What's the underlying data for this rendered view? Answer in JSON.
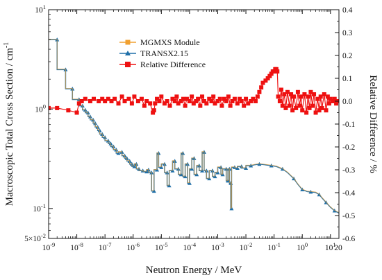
{
  "chart_data": {
    "type": "line",
    "title": "",
    "xlabel": "Neutron Energy / MeV",
    "ylabel_left": "Macroscopic Total Cross Section / cm",
    "ylabel_left_superscript": "-1",
    "ylabel_right": "Relative Difference / %",
    "x_scale": "log",
    "y_left_scale": "log",
    "xlim": [
      1e-09,
      20
    ],
    "ylim_left": [
      0.05,
      10
    ],
    "ylim_right": [
      -0.6,
      0.4
    ],
    "x_ticks": [
      {
        "value": 1e-09,
        "base": "10",
        "exp": "-9"
      },
      {
        "value": 1e-08,
        "base": "10",
        "exp": "-8"
      },
      {
        "value": 1e-07,
        "base": "10",
        "exp": "-7"
      },
      {
        "value": 1e-06,
        "base": "10",
        "exp": "-6"
      },
      {
        "value": 1e-05,
        "base": "10",
        "exp": "-5"
      },
      {
        "value": 0.0001,
        "base": "10",
        "exp": "-4"
      },
      {
        "value": 0.001,
        "base": "10",
        "exp": "-3"
      },
      {
        "value": 0.01,
        "base": "10",
        "exp": "-2"
      },
      {
        "value": 0.1,
        "base": "10",
        "exp": "-1"
      },
      {
        "value": 1,
        "base": "10",
        "exp": "0"
      },
      {
        "value": 10,
        "base": "10",
        "exp": "1"
      }
    ],
    "x_extra_tick": {
      "value": 20,
      "label": "20"
    },
    "y_left_ticks": [
      {
        "value": 10,
        "base": "10",
        "exp": "1"
      },
      {
        "value": 1,
        "base": "10",
        "exp": "0"
      },
      {
        "value": 0.1,
        "base": "10",
        "exp": "-1"
      },
      {
        "value": 0.05,
        "base": "5×10",
        "exp": "-2"
      }
    ],
    "y_right_ticks": [
      "0.4",
      "0.3",
      "0.2",
      "0.1",
      "0.0",
      "-0.1",
      "-0.2",
      "-0.3",
      "-0.4",
      "-0.5",
      "-0.6"
    ],
    "legend_position": "top-center",
    "series": [
      {
        "name": "MGMXS Module",
        "axis": "left",
        "color": "#f0a030",
        "marker": "square",
        "points": [
          [
            1e-09,
            5.0
          ],
          [
            2e-09,
            5.0
          ],
          [
            2e-09,
            2.5
          ],
          [
            4e-09,
            2.5
          ],
          [
            4e-09,
            1.6
          ],
          [
            7e-09,
            1.6
          ],
          [
            7e-09,
            1.25
          ],
          [
            1.2e-08,
            1.25
          ],
          [
            1.2e-08,
            1.08
          ],
          [
            1.6e-08,
            1.08
          ],
          [
            1.6e-08,
            0.98
          ],
          [
            2e-08,
            0.98
          ],
          [
            2e-08,
            0.92
          ],
          [
            2.5e-08,
            0.92
          ],
          [
            2.5e-08,
            0.84
          ],
          [
            3e-08,
            0.84
          ],
          [
            3e-08,
            0.78
          ],
          [
            3.8e-08,
            0.78
          ],
          [
            3.8e-08,
            0.72
          ],
          [
            4.5e-08,
            0.72
          ],
          [
            4.5e-08,
            0.66
          ],
          [
            5.5e-08,
            0.66
          ],
          [
            5.5e-08,
            0.61
          ],
          [
            6.5e-08,
            0.61
          ],
          [
            6.5e-08,
            0.56
          ],
          [
            8e-08,
            0.56
          ],
          [
            8e-08,
            0.52
          ],
          [
            1e-07,
            0.52
          ],
          [
            1e-07,
            0.48
          ],
          [
            1.3e-07,
            0.48
          ],
          [
            1.3e-07,
            0.45
          ],
          [
            1.6e-07,
            0.45
          ],
          [
            1.6e-07,
            0.42
          ],
          [
            2e-07,
            0.42
          ],
          [
            2e-07,
            0.39
          ],
          [
            2.5e-07,
            0.39
          ],
          [
            2.5e-07,
            0.36
          ],
          [
            3e-07,
            0.36
          ],
          [
            3e-07,
            0.37
          ],
          [
            4e-07,
            0.37
          ],
          [
            4e-07,
            0.34
          ],
          [
            5e-07,
            0.34
          ],
          [
            5e-07,
            0.32
          ],
          [
            6e-07,
            0.32
          ],
          [
            6e-07,
            0.3
          ],
          [
            7.5e-07,
            0.3
          ],
          [
            7.5e-07,
            0.28
          ],
          [
            9e-07,
            0.28
          ],
          [
            9e-07,
            0.265
          ],
          [
            1.1e-06,
            0.265
          ],
          [
            1.1e-06,
            0.28
          ],
          [
            1.3e-06,
            0.28
          ],
          [
            1.3e-06,
            0.25
          ],
          [
            1.6e-06,
            0.25
          ],
          [
            1.6e-06,
            0.24
          ],
          [
            2.2e-06,
            0.24
          ],
          [
            2.2e-06,
            0.235
          ],
          [
            3e-06,
            0.235
          ],
          [
            3e-06,
            0.245
          ],
          [
            3.5e-06,
            0.245
          ],
          [
            3.5e-06,
            0.23
          ],
          [
            4.5e-06,
            0.23
          ],
          [
            4.5e-06,
            0.15
          ],
          [
            5.5e-06,
            0.15
          ],
          [
            5.5e-06,
            0.245
          ],
          [
            7e-06,
            0.245
          ],
          [
            7e-06,
            0.36
          ],
          [
            8e-06,
            0.36
          ],
          [
            8e-06,
            0.26
          ],
          [
            1e-05,
            0.26
          ],
          [
            1e-05,
            0.28
          ],
          [
            1.3e-05,
            0.28
          ],
          [
            1.3e-05,
            0.23
          ],
          [
            1.6e-05,
            0.23
          ],
          [
            1.6e-05,
            0.17
          ],
          [
            1.9e-05,
            0.17
          ],
          [
            1.9e-05,
            0.24
          ],
          [
            2.5e-05,
            0.24
          ],
          [
            2.5e-05,
            0.3
          ],
          [
            3e-05,
            0.3
          ],
          [
            3e-05,
            0.25
          ],
          [
            4e-05,
            0.25
          ],
          [
            4e-05,
            0.22
          ],
          [
            5e-05,
            0.22
          ],
          [
            5e-05,
            0.36
          ],
          [
            5.8e-05,
            0.36
          ],
          [
            5.8e-05,
            0.21
          ],
          [
            7e-05,
            0.21
          ],
          [
            7e-05,
            0.28
          ],
          [
            8.5e-05,
            0.28
          ],
          [
            8.5e-05,
            0.18
          ],
          [
            0.0001,
            0.18
          ],
          [
            0.0001,
            0.25
          ],
          [
            0.00012,
            0.25
          ],
          [
            0.00012,
            0.32
          ],
          [
            0.000145,
            0.32
          ],
          [
            0.000145,
            0.22
          ],
          [
            0.00018,
            0.22
          ],
          [
            0.00018,
            0.27
          ],
          [
            0.00022,
            0.27
          ],
          [
            0.00022,
            0.24
          ],
          [
            0.00028,
            0.24
          ],
          [
            0.00028,
            0.37
          ],
          [
            0.00033,
            0.37
          ],
          [
            0.00033,
            0.24
          ],
          [
            0.0004,
            0.24
          ],
          [
            0.0004,
            0.2
          ],
          [
            0.0005,
            0.2
          ],
          [
            0.0005,
            0.24
          ],
          [
            0.00065,
            0.24
          ],
          [
            0.00065,
            0.21
          ],
          [
            0.0008,
            0.21
          ],
          [
            0.0008,
            0.23
          ],
          [
            0.001,
            0.23
          ],
          [
            0.001,
            0.26
          ],
          [
            0.0013,
            0.26
          ],
          [
            0.0013,
            0.22
          ],
          [
            0.0015,
            0.22
          ],
          [
            0.0015,
            0.25
          ],
          [
            0.002,
            0.25
          ],
          [
            0.002,
            0.19
          ],
          [
            0.0023,
            0.19
          ],
          [
            0.0023,
            0.25
          ],
          [
            0.0026,
            0.25
          ],
          [
            0.0026,
            0.18
          ],
          [
            0.0029,
            0.18
          ],
          [
            0.0029,
            0.1
          ],
          [
            0.0031,
            0.1
          ],
          [
            0.0031,
            0.26
          ],
          [
            0.004,
            0.26
          ],
          [
            0.004,
            0.255
          ],
          [
            0.005,
            0.255
          ],
          [
            0.005,
            0.265
          ],
          [
            0.007,
            0.265
          ],
          [
            0.007,
            0.255
          ],
          [
            0.01,
            0.255
          ],
          [
            0.01,
            0.27
          ],
          [
            0.015,
            0.27
          ],
          [
            0.02,
            0.275
          ],
          [
            0.03,
            0.28
          ],
          [
            0.05,
            0.275
          ],
          [
            0.08,
            0.27
          ],
          [
            0.12,
            0.265
          ],
          [
            0.2,
            0.25
          ],
          [
            0.3,
            0.23
          ],
          [
            0.5,
            0.2
          ],
          [
            0.7,
            0.175
          ],
          [
            1,
            0.155
          ],
          [
            1.5,
            0.148
          ],
          [
            2,
            0.147
          ],
          [
            3,
            0.145
          ],
          [
            4,
            0.138
          ],
          [
            5,
            0.128
          ],
          [
            7,
            0.115
          ],
          [
            10,
            0.103
          ],
          [
            14,
            0.095
          ],
          [
            20,
            0.09
          ]
        ]
      },
      {
        "name": "TRANSX2.15",
        "axis": "left",
        "color": "#1f6fa8",
        "marker": "triangle"
      },
      {
        "name": "Relative Difference",
        "axis": "right",
        "color": "#ee1111",
        "marker": "square",
        "points": [
          [
            1e-09,
            -0.03
          ],
          [
            2e-09,
            -0.03
          ],
          [
            5e-09,
            -0.04
          ],
          [
            1e-08,
            -0.05
          ],
          [
            1.2e-08,
            -0.01
          ],
          [
            1.5e-08,
            0.0
          ],
          [
            2e-08,
            0.01
          ],
          [
            3e-08,
            0.0
          ],
          [
            4e-08,
            0.01
          ],
          [
            6e-08,
            0.0
          ],
          [
            8e-08,
            0.01
          ],
          [
            1e-07,
            0.0
          ],
          [
            1.3e-07,
            0.01
          ],
          [
            1.7e-07,
            0.0
          ],
          [
            2.2e-07,
            0.01
          ],
          [
            3e-07,
            -0.01
          ],
          [
            4e-07,
            0.02
          ],
          [
            5e-07,
            0.0
          ],
          [
            7e-07,
            0.01
          ],
          [
            9e-07,
            -0.01
          ],
          [
            1.1e-06,
            0.02
          ],
          [
            1.5e-06,
            0.0
          ],
          [
            2e-06,
            0.01
          ],
          [
            2.5e-06,
            -0.02
          ],
          [
            3e-06,
            0.0
          ],
          [
            4e-06,
            -0.01
          ],
          [
            5e-06,
            -0.05
          ],
          [
            5.5e-06,
            -0.04
          ],
          [
            6e-06,
            -0.01
          ],
          [
            7e-06,
            0.01
          ],
          [
            8.5e-06,
            0.0
          ],
          [
            1e-05,
            0.02
          ],
          [
            1.3e-05,
            -0.01
          ],
          [
            1.6e-05,
            0.0
          ],
          [
            2e-05,
            -0.02
          ],
          [
            2.5e-05,
            0.01
          ],
          [
            3e-05,
            0.0
          ],
          [
            3.5e-05,
            0.02
          ],
          [
            4e-05,
            -0.01
          ],
          [
            5e-05,
            0.0
          ],
          [
            6e-05,
            0.01
          ],
          [
            7e-05,
            -0.02
          ],
          [
            8e-05,
            0.01
          ],
          [
            0.0001,
            0.0
          ],
          [
            0.00012,
            0.02
          ],
          [
            0.00014,
            -0.01
          ],
          [
            0.00017,
            0.0
          ],
          [
            0.0002,
            0.01
          ],
          [
            0.00024,
            -0.02
          ],
          [
            0.00028,
            0.02
          ],
          [
            0.00033,
            0.0
          ],
          [
            0.0004,
            -0.01
          ],
          [
            0.0005,
            0.01
          ],
          [
            0.0006,
            0.0
          ],
          [
            0.0007,
            0.02
          ],
          [
            0.0008,
            -0.01
          ],
          [
            0.001,
            0.0
          ],
          [
            0.0012,
            0.01
          ],
          [
            0.0014,
            -0.02
          ],
          [
            0.0017,
            0.01
          ],
          [
            0.002,
            0.0
          ],
          [
            0.0024,
            0.02
          ],
          [
            0.0028,
            -0.02
          ],
          [
            0.0033,
            0.0
          ],
          [
            0.004,
            0.01
          ],
          [
            0.005,
            -0.01
          ],
          [
            0.006,
            0.01
          ],
          [
            0.007,
            0.0
          ],
          [
            0.0085,
            -0.02
          ],
          [
            0.01,
            0.01
          ],
          [
            0.012,
            -0.01
          ],
          [
            0.015,
            0.0
          ],
          [
            0.018,
            0.01
          ],
          [
            0.022,
            0.0
          ],
          [
            0.026,
            0.02
          ],
          [
            0.03,
            0.04
          ],
          [
            0.035,
            0.06
          ],
          [
            0.04,
            0.08
          ],
          [
            0.05,
            0.09
          ],
          [
            0.06,
            0.1
          ],
          [
            0.07,
            0.11
          ],
          [
            0.08,
            0.12
          ],
          [
            0.09,
            0.13
          ],
          [
            0.1,
            0.13
          ],
          [
            0.11,
            0.14
          ],
          [
            0.12,
            0.14
          ],
          [
            0.13,
            0.13
          ],
          [
            0.14,
            0.02
          ],
          [
            0.16,
            0.0
          ],
          [
            0.18,
            0.05
          ],
          [
            0.2,
            -0.02
          ],
          [
            0.23,
            0.03
          ],
          [
            0.26,
            -0.03
          ],
          [
            0.3,
            0.04
          ],
          [
            0.35,
            -0.02
          ],
          [
            0.4,
            0.03
          ],
          [
            0.45,
            -0.04
          ],
          [
            0.5,
            0.02
          ],
          [
            0.6,
            -0.03
          ],
          [
            0.7,
            0.04
          ],
          [
            0.8,
            -0.02
          ],
          [
            0.9,
            0.02
          ],
          [
            1,
            -0.04
          ],
          [
            1.2,
            0.03
          ],
          [
            1.4,
            -0.05
          ],
          [
            1.6,
            0.02
          ],
          [
            1.8,
            -0.03
          ],
          [
            2,
            0.04
          ],
          [
            2.3,
            -0.02
          ],
          [
            2.6,
            0.03
          ],
          [
            3,
            -0.05
          ],
          [
            3.5,
            0.01
          ],
          [
            4,
            -0.04
          ],
          [
            4.5,
            0.02
          ],
          [
            5,
            -0.03
          ],
          [
            6,
            0.03
          ],
          [
            7,
            -0.04
          ],
          [
            8,
            0.02
          ],
          [
            9,
            -0.01
          ],
          [
            10,
            0.01
          ],
          [
            12,
            0.0
          ],
          [
            14,
            0.01
          ],
          [
            16,
            -0.01
          ],
          [
            18,
            0.0
          ],
          [
            20,
            0.0
          ]
        ]
      }
    ]
  }
}
